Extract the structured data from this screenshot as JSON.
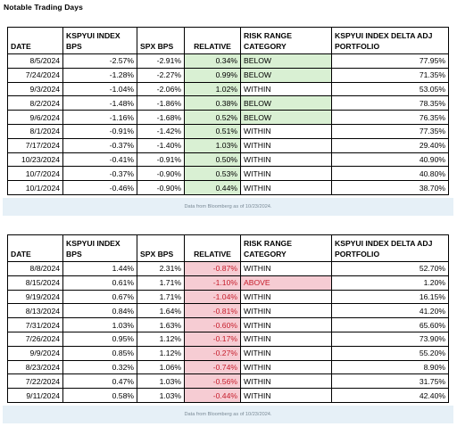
{
  "heading": "Notable Trading Days",
  "headers": [
    "DATE",
    "KSPYUI INDEX BPS",
    "SPX BPS",
    "RELATIVE",
    "RISK RANGE CATEGORY",
    "KSPYUI INDEX DELTA ADJ PORTFOLIO"
  ],
  "colors": {
    "positive_fill": "#d9f0d3",
    "negative_fill": "#f6ccd3",
    "negative_text": "#c61d2b",
    "source_bar": "#e6f0f7"
  },
  "tables": [
    {
      "source": "Data from Bloomberg as of 10/23/2024.",
      "rows": [
        {
          "date": "8/5/2024",
          "kspyui": "-2.57%",
          "spx": "-2.91%",
          "relative": "0.34%",
          "sign": "pos",
          "category": "BELOW",
          "portfolio": "77.95%"
        },
        {
          "date": "7/24/2024",
          "kspyui": "-1.28%",
          "spx": "-2.27%",
          "relative": "0.99%",
          "sign": "pos",
          "category": "BELOW",
          "portfolio": "71.35%"
        },
        {
          "date": "9/3/2024",
          "kspyui": "-1.04%",
          "spx": "-2.06%",
          "relative": "1.02%",
          "sign": "pos",
          "category": "WITHIN",
          "portfolio": "53.05%"
        },
        {
          "date": "8/2/2024",
          "kspyui": "-1.48%",
          "spx": "-1.86%",
          "relative": "0.38%",
          "sign": "pos",
          "category": "BELOW",
          "portfolio": "78.35%"
        },
        {
          "date": "9/6/2024",
          "kspyui": "-1.16%",
          "spx": "-1.68%",
          "relative": "0.52%",
          "sign": "pos",
          "category": "BELOW",
          "portfolio": "76.35%"
        },
        {
          "date": "8/1/2024",
          "kspyui": "-0.91%",
          "spx": "-1.42%",
          "relative": "0.51%",
          "sign": "pos",
          "category": "WITHIN",
          "portfolio": "77.35%"
        },
        {
          "date": "7/17/2024",
          "kspyui": "-0.37%",
          "spx": "-1.40%",
          "relative": "1.03%",
          "sign": "pos",
          "category": "WITHIN",
          "portfolio": "29.40%"
        },
        {
          "date": "10/23/2024",
          "kspyui": "-0.41%",
          "spx": "-0.91%",
          "relative": "0.50%",
          "sign": "pos",
          "category": "WITHIN",
          "portfolio": "40.90%"
        },
        {
          "date": "10/7/2024",
          "kspyui": "-0.37%",
          "spx": "-0.90%",
          "relative": "0.53%",
          "sign": "pos",
          "category": "WITHIN",
          "portfolio": "40.80%"
        },
        {
          "date": "10/1/2024",
          "kspyui": "-0.46%",
          "spx": "-0.90%",
          "relative": "0.44%",
          "sign": "pos",
          "category": "WITHIN",
          "portfolio": "38.70%"
        }
      ]
    },
    {
      "source": "Data from Bloomberg as of 10/23/2024.",
      "rows": [
        {
          "date": "8/8/2024",
          "kspyui": "1.44%",
          "spx": "2.31%",
          "relative": "-0.87%",
          "sign": "neg",
          "category": "WITHIN",
          "portfolio": "52.70%"
        },
        {
          "date": "8/15/2024",
          "kspyui": "0.61%",
          "spx": "1.71%",
          "relative": "-1.10%",
          "sign": "neg",
          "category": "ABOVE",
          "portfolio": "1.20%"
        },
        {
          "date": "9/19/2024",
          "kspyui": "0.67%",
          "spx": "1.71%",
          "relative": "-1.04%",
          "sign": "neg",
          "category": "WITHIN",
          "portfolio": "16.15%"
        },
        {
          "date": "8/13/2024",
          "kspyui": "0.84%",
          "spx": "1.64%",
          "relative": "-0.81%",
          "sign": "neg",
          "category": "WITHIN",
          "portfolio": "41.20%"
        },
        {
          "date": "7/31/2024",
          "kspyui": "1.03%",
          "spx": "1.63%",
          "relative": "-0.60%",
          "sign": "neg",
          "category": "WITHIN",
          "portfolio": "65.60%"
        },
        {
          "date": "7/26/2024",
          "kspyui": "0.95%",
          "spx": "1.12%",
          "relative": "-0.17%",
          "sign": "neg",
          "category": "WITHIN",
          "portfolio": "73.90%"
        },
        {
          "date": "9/9/2024",
          "kspyui": "0.85%",
          "spx": "1.12%",
          "relative": "-0.27%",
          "sign": "neg",
          "category": "WITHIN",
          "portfolio": "55.20%"
        },
        {
          "date": "8/23/2024",
          "kspyui": "0.32%",
          "spx": "1.06%",
          "relative": "-0.74%",
          "sign": "neg",
          "category": "WITHIN",
          "portfolio": "8.90%"
        },
        {
          "date": "7/22/2024",
          "kspyui": "0.47%",
          "spx": "1.03%",
          "relative": "-0.56%",
          "sign": "neg",
          "category": "WITHIN",
          "portfolio": "31.75%"
        },
        {
          "date": "9/11/2024",
          "kspyui": "0.58%",
          "spx": "1.03%",
          "relative": "-0.44%",
          "sign": "neg",
          "category": "WITHIN",
          "portfolio": "42.40%"
        }
      ]
    }
  ]
}
